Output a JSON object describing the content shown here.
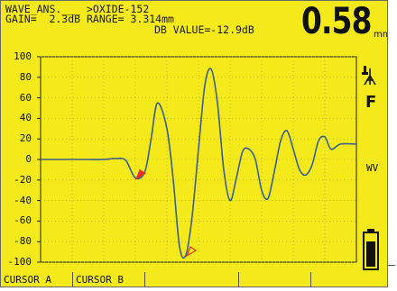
{
  "header": {
    "line1": "WAVE_ANS.___ >OXIDE-152",
    "line2": "GAIN=  2.3dB RANGE= 3.314mm",
    "line3": "DB VALUE=-12.9dB",
    "big_value": "0.58",
    "big_unit": "mm"
  },
  "y_axis": {
    "ticks": [
      "100",
      "80",
      "60",
      "40",
      "20",
      "0",
      "-20",
      "-40",
      "-60",
      "-80",
      "-100"
    ]
  },
  "side": {
    "filter_label": "F",
    "mode_label": "WV",
    "probe_icon": "transducer-icon",
    "battery_icon": "battery-icon",
    "battery_level": 0.8
  },
  "footer": {
    "cursor_a": "CURSOR A",
    "cursor_b": "CURSOR B"
  },
  "chart_data": {
    "type": "line",
    "ylim": [
      -100,
      100
    ],
    "x": [
      0,
      5,
      10,
      15,
      20,
      24,
      27,
      30,
      33,
      35,
      37,
      40,
      42,
      44,
      46,
      48,
      50,
      52,
      54,
      56,
      58,
      60,
      62,
      64,
      66,
      68,
      70,
      72,
      74,
      76,
      78,
      80,
      82,
      84,
      86,
      88,
      90,
      92,
      95,
      100
    ],
    "values": [
      0,
      0,
      0,
      0,
      0,
      1,
      -1,
      -18,
      -12,
      20,
      55,
      30,
      -20,
      -85,
      -93,
      -55,
      10,
      72,
      88,
      55,
      -10,
      -40,
      -18,
      8,
      10,
      0,
      -30,
      -38,
      -12,
      18,
      28,
      10,
      -10,
      -15,
      -5,
      18,
      22,
      10,
      15,
      15
    ],
    "markers": [
      {
        "name": "cursor-a",
        "x": 30,
        "y": -18,
        "color": "#e8321e"
      },
      {
        "name": "cursor-b",
        "x": 46,
        "y": -93,
        "color": "#e8321e"
      }
    ],
    "line_color": "#3a5e8c",
    "grid": true
  },
  "colors": {
    "background": "#f4ea1b",
    "marker": "#e8321e",
    "trace": "#3a5e8c"
  }
}
